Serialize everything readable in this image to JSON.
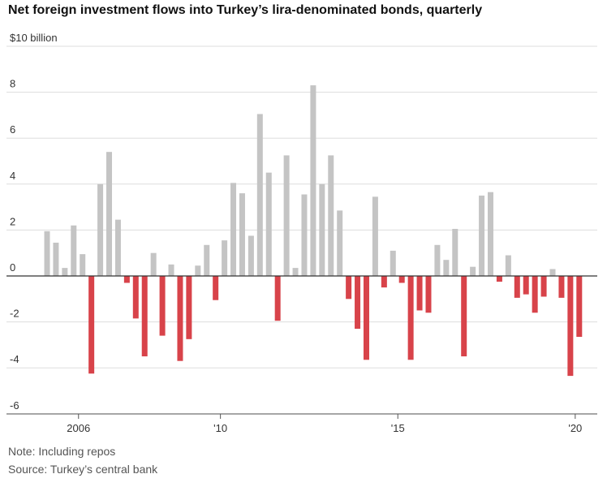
{
  "title": "Net foreign investment flows into Turkey’s lira-denominated bonds, quarterly",
  "note": "Note: Including repos",
  "source": "Source: Turkey’s central bank",
  "colors": {
    "positive": "#c4c4c4",
    "negative": "#d8434a",
    "grid": "#dddddd",
    "zero": "#333333"
  },
  "chart_data": {
    "type": "bar",
    "ylabel": "$10 billion",
    "ylim": [
      -6,
      10
    ],
    "yticks": [
      {
        "value": 10,
        "label": "$10 billion"
      },
      {
        "value": 8,
        "label": "8"
      },
      {
        "value": 6,
        "label": "6"
      },
      {
        "value": 4,
        "label": "4"
      },
      {
        "value": 2,
        "label": "2"
      },
      {
        "value": 0,
        "label": "0"
      },
      {
        "value": -2,
        "label": "-2"
      },
      {
        "value": -4,
        "label": "-4"
      },
      {
        "value": -6,
        "label": "-6"
      }
    ],
    "xticks": [
      {
        "label": "2006",
        "index": 4
      },
      {
        "label": "'10",
        "index": 20
      },
      {
        "label": "'15",
        "index": 40
      },
      {
        "label": "'20",
        "index": 60
      }
    ],
    "values": [
      1.95,
      1.45,
      0.35,
      2.2,
      0.95,
      -4.25,
      4.0,
      5.4,
      2.45,
      -0.3,
      -1.85,
      -3.5,
      1.0,
      -2.6,
      0.5,
      -3.7,
      -2.75,
      0.45,
      1.35,
      -1.05,
      1.55,
      4.05,
      3.6,
      1.75,
      7.05,
      4.5,
      -1.95,
      5.25,
      0.35,
      3.55,
      8.3,
      4.0,
      5.25,
      2.85,
      -1.0,
      -2.3,
      -3.65,
      3.45,
      -0.5,
      1.1,
      -0.3,
      -3.65,
      -1.5,
      -1.6,
      1.35,
      0.7,
      2.05,
      -3.5,
      0.4,
      3.5,
      3.65,
      -0.25,
      0.9,
      -0.95,
      -0.8,
      -1.6,
      -0.9,
      0.3,
      -0.95,
      -4.35,
      -2.65
    ]
  }
}
